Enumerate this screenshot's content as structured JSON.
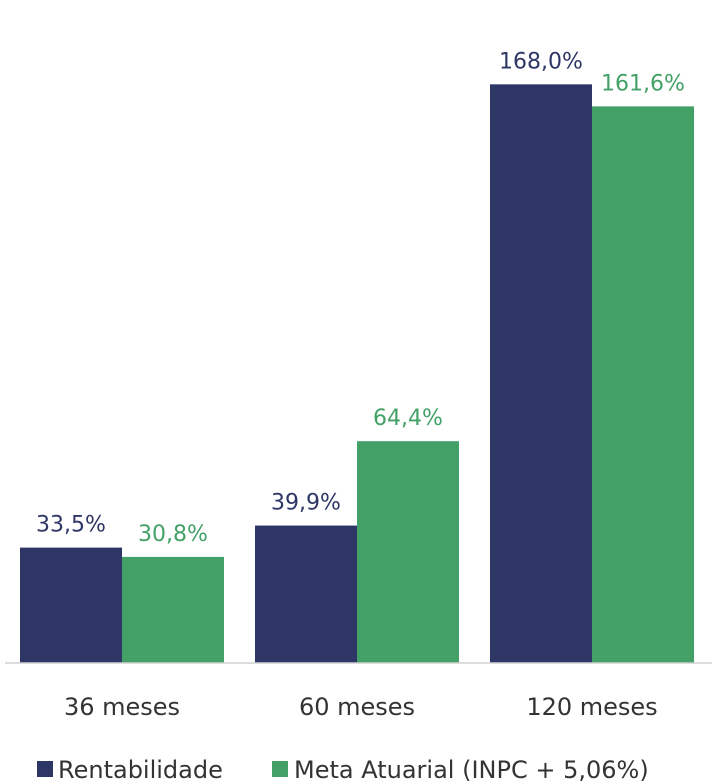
{
  "chart_data": {
    "type": "bar",
    "categories": [
      "36 meses",
      "60 meses",
      "120 meses"
    ],
    "series": [
      {
        "name": "Rentabilidade",
        "values": [
          33.5,
          39.9,
          168.0
        ],
        "labels": [
          "33,5%",
          "39,9%",
          "168,0%"
        ],
        "color": "#2E3666"
      },
      {
        "name": "Meta Atuarial (INPC + 5,06%)",
        "values": [
          30.8,
          64.4,
          161.6
        ],
        "labels": [
          "30,8%",
          "64,4%",
          "161,6%"
        ],
        "color": "#43A167"
      }
    ],
    "ylim": [
      0,
      180
    ],
    "grid": false,
    "legend_position": "bottom"
  }
}
